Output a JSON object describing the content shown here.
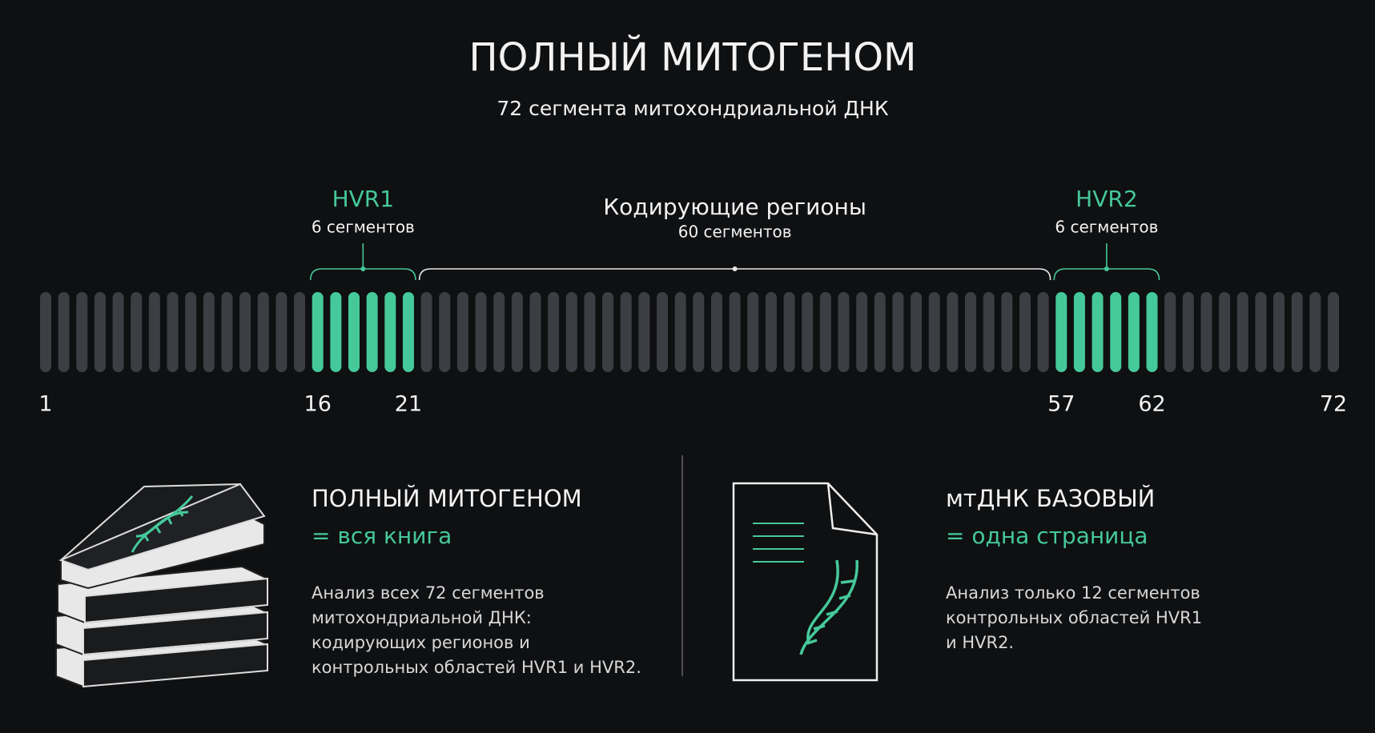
{
  "header": {
    "title": "ПОЛНЫЙ МИТОГЕНОМ",
    "subtitle": "72 сегмента митохондриальной ДНК"
  },
  "segment_map": {
    "ticks": [
      1,
      16,
      21,
      57,
      62,
      72
    ],
    "regions": [
      {
        "label": "HVR1",
        "count_label": "6 сегментов"
      },
      {
        "label": "Кодирующие регионы",
        "count_label": "60 сегментов"
      },
      {
        "label": "HVR2",
        "count_label": "6 сегментов"
      }
    ]
  },
  "cards": [
    {
      "title": "ПОЛНЫЙ МИТОГЕНОМ",
      "equivalent": "= вся книга",
      "description": [
        "Анализ всех 72 сегментов",
        "митохондриальной ДНК:",
        "кодирующих регионов и",
        "контрольных областей HVR1 и HVR2."
      ]
    },
    {
      "title": "мтДНК БАЗОВЫЙ",
      "equivalent": "= одна страница",
      "description": [
        "Анализ только 12 сегментов",
        "контрольных областей HVR1",
        "и HVR2."
      ]
    }
  ]
}
